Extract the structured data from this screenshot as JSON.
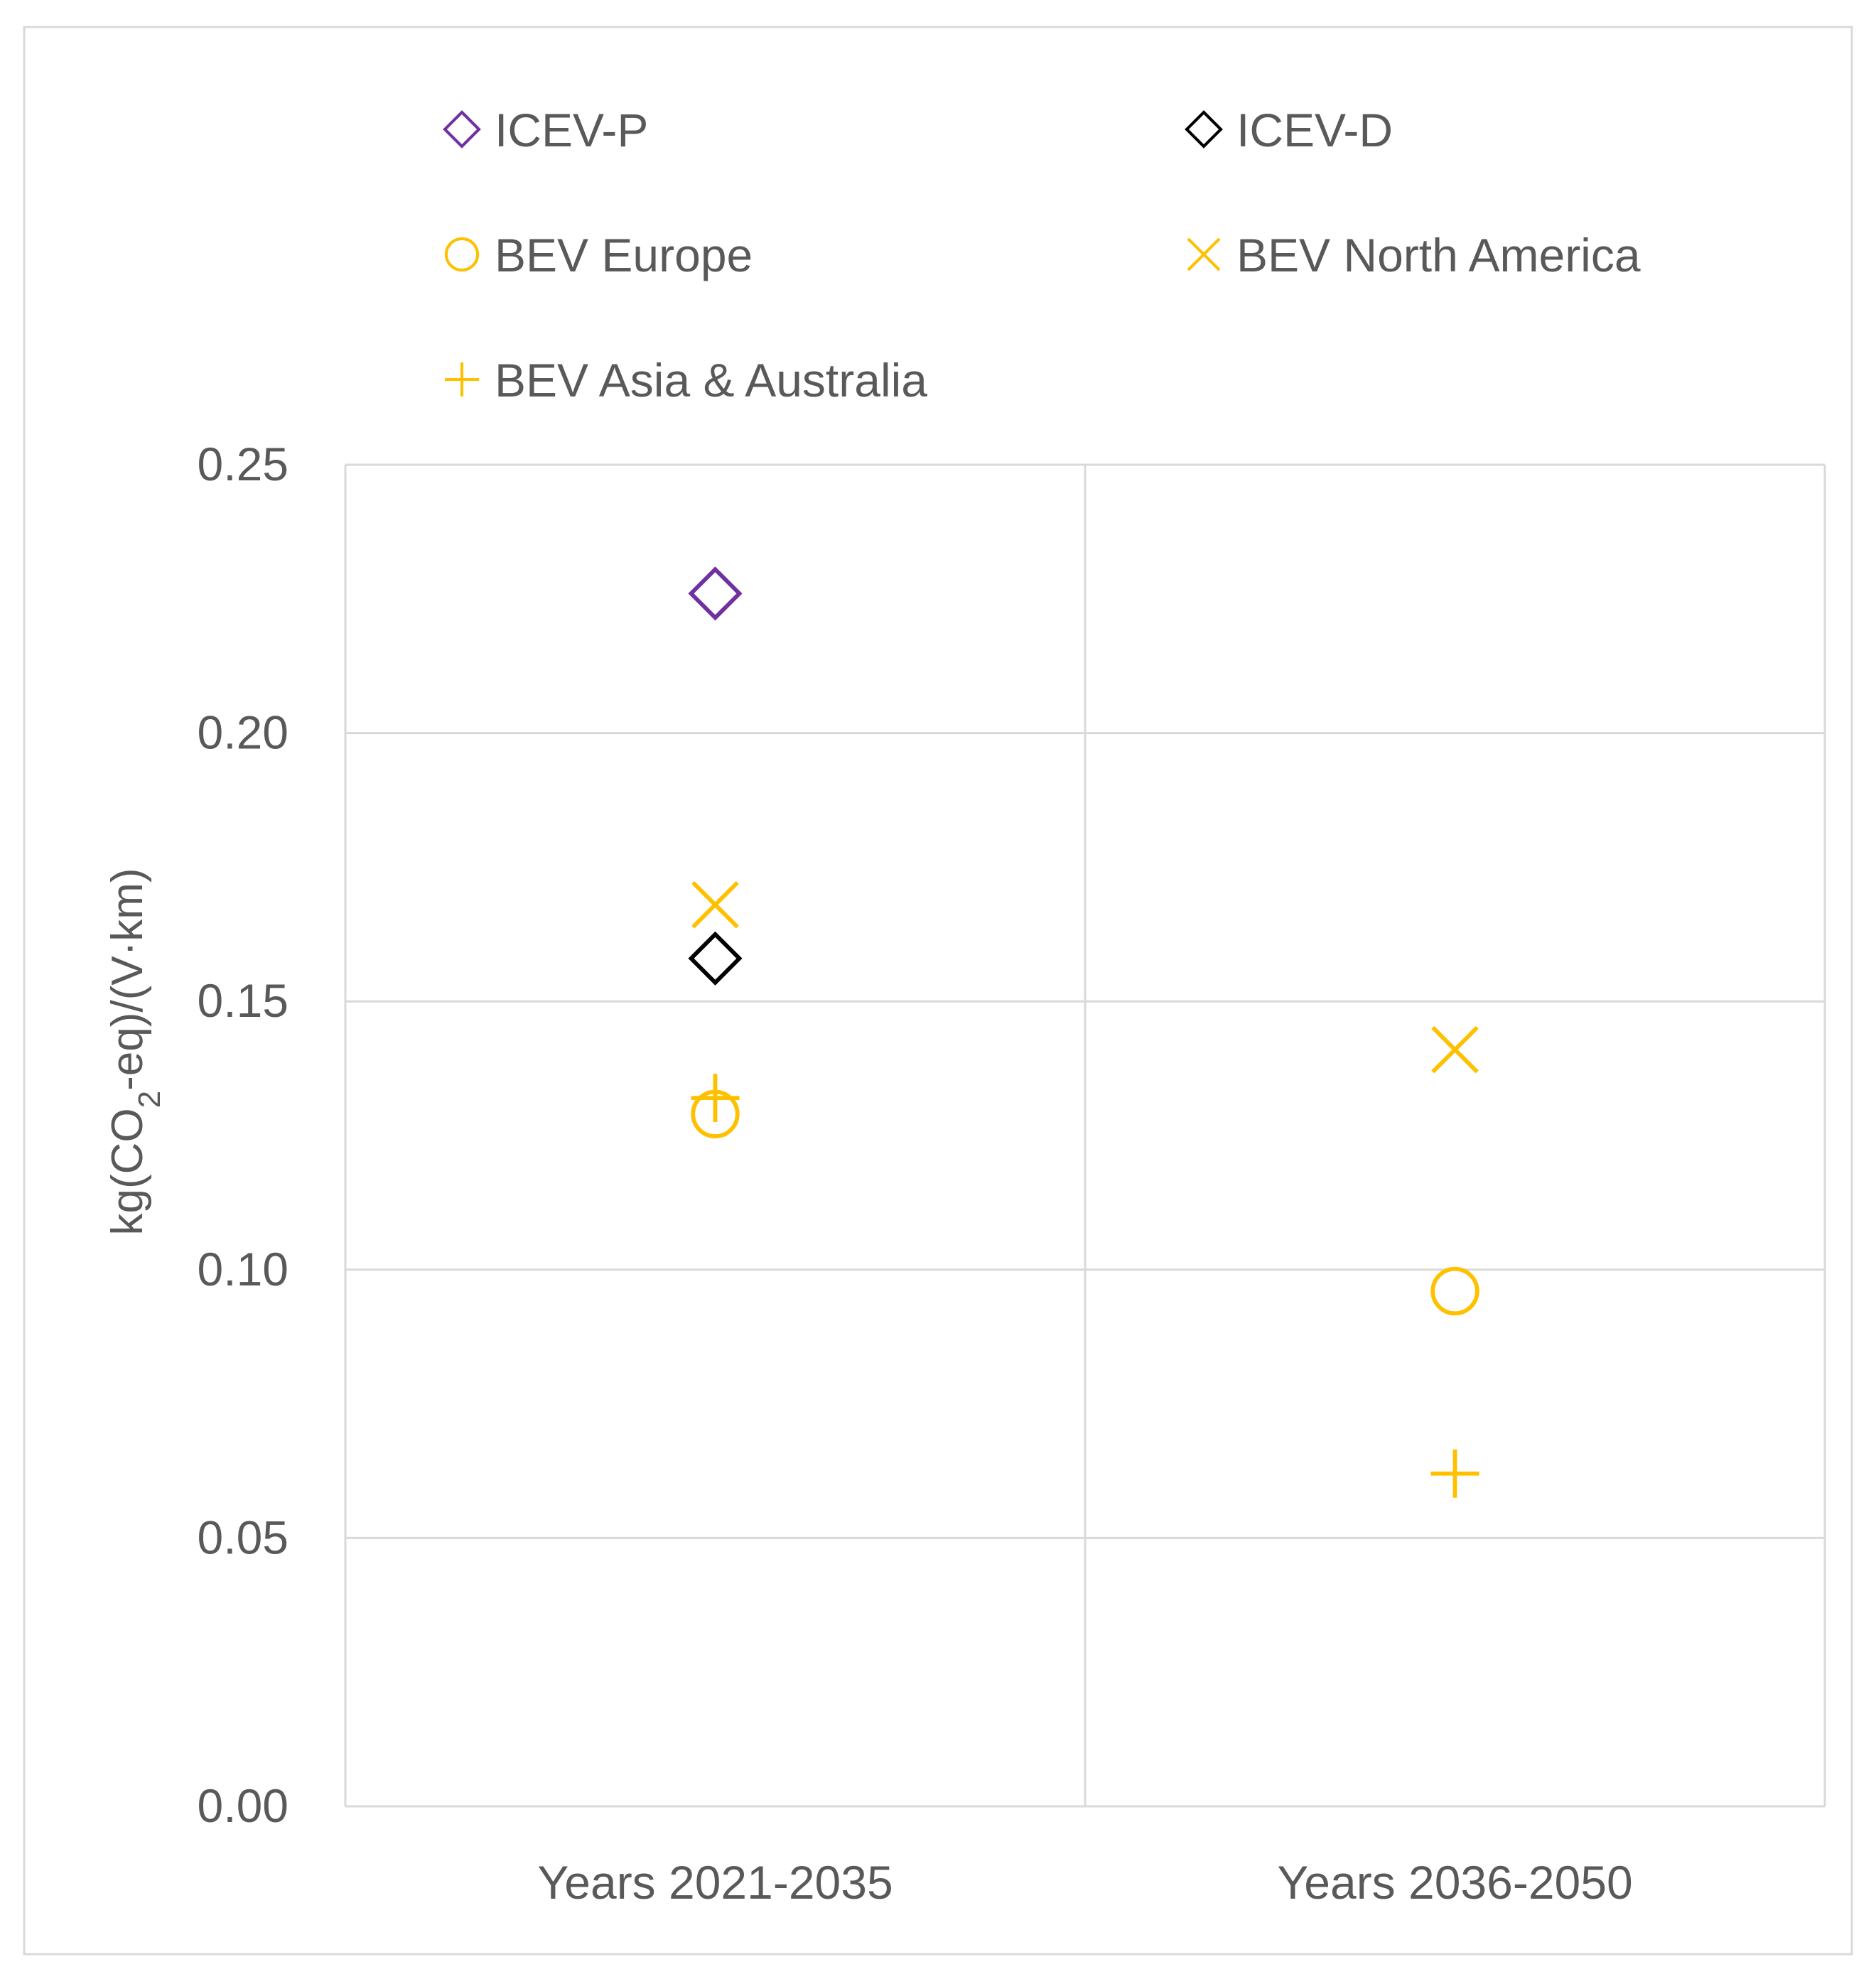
{
  "chart_data": {
    "type": "scatter",
    "title": "",
    "xlabel": "",
    "ylabel": {
      "prefix": "kg(CO",
      "subscript": "2",
      "suffix": "-eq)/(V·km)"
    },
    "ylim": [
      0,
      0.25
    ],
    "yticks": [
      {
        "value": 0.0,
        "label": "0.00"
      },
      {
        "value": 0.05,
        "label": "0.05"
      },
      {
        "value": 0.1,
        "label": "0.10"
      },
      {
        "value": 0.15,
        "label": "0.15"
      },
      {
        "value": 0.2,
        "label": "0.20"
      },
      {
        "value": 0.25,
        "label": "0.25"
      }
    ],
    "categories": [
      "Years 2021-2035",
      "Years  2036-2050"
    ],
    "grid": true,
    "legend_position": "top",
    "series": [
      {
        "name": "ICEV-P",
        "marker": "diamond",
        "color": "#7030A0",
        "values": [
          0.226,
          null
        ]
      },
      {
        "name": "ICEV-D",
        "marker": "diamond",
        "color": "#000000",
        "values": [
          0.158,
          null
        ]
      },
      {
        "name": "BEV Europe",
        "marker": "circle",
        "color": "#FFC000",
        "values": [
          0.129,
          0.096
        ]
      },
      {
        "name": "BEV North America",
        "marker": "x",
        "color": "#FFC000",
        "values": [
          0.168,
          0.141
        ]
      },
      {
        "name": "BEV Asia & Australia",
        "marker": "plus",
        "color": "#FFC000",
        "values": [
          0.132,
          0.062
        ]
      }
    ]
  }
}
